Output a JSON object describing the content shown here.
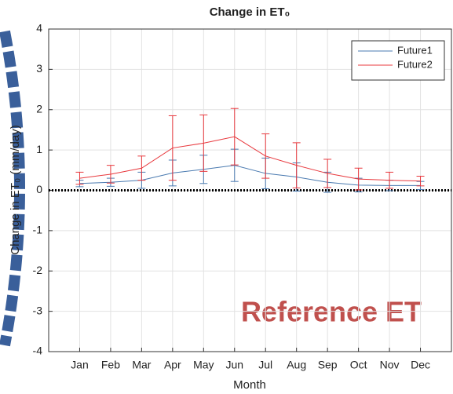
{
  "chart_data": {
    "type": "line",
    "title": "Change in ET₀",
    "xlabel": "Month",
    "ylabel": "Change in ET₀ (mm/day)",
    "annotation": "Reference ET",
    "categories": [
      "Jan",
      "Feb",
      "Mar",
      "Apr",
      "May",
      "Jun",
      "Jul",
      "Aug",
      "Sep",
      "Oct",
      "Nov",
      "Dec"
    ],
    "series": [
      {
        "name": "Future1",
        "color": "#4a7ab0",
        "values": [
          0.17,
          0.2,
          0.25,
          0.43,
          0.52,
          0.62,
          0.42,
          0.33,
          0.2,
          0.13,
          0.12,
          0.12
        ],
        "errors": [
          0.08,
          0.1,
          0.2,
          0.32,
          0.35,
          0.4,
          0.38,
          0.35,
          0.25,
          0.17,
          0.13,
          0.1
        ]
      },
      {
        "name": "Future2",
        "color": "#e8383d",
        "values": [
          0.3,
          0.4,
          0.55,
          1.05,
          1.17,
          1.33,
          0.85,
          0.62,
          0.42,
          0.28,
          0.25,
          0.23
        ],
        "errors": [
          0.15,
          0.22,
          0.3,
          0.8,
          0.7,
          0.7,
          0.55,
          0.56,
          0.35,
          0.27,
          0.2,
          0.12
        ]
      }
    ],
    "reference_line": 0,
    "ylim": [
      -4,
      4
    ],
    "yticks": [
      -4,
      -3,
      -2,
      -1,
      0,
      1,
      2,
      3,
      4
    ],
    "grid": true,
    "legend": "northeast"
  }
}
